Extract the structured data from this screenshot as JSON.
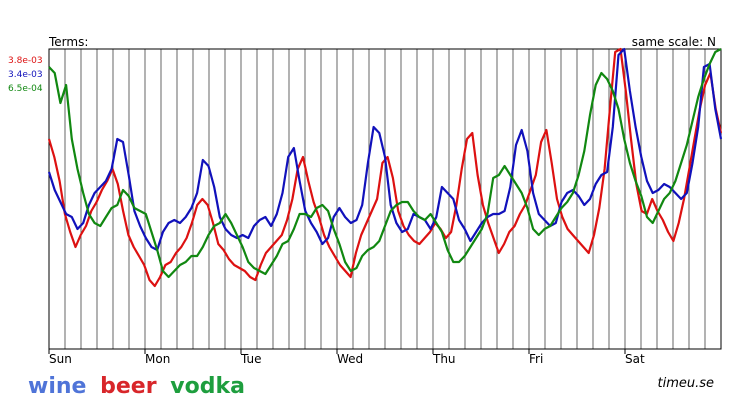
{
  "header": {
    "terms_label": "Terms:",
    "scale_label": "same scale: N"
  },
  "scale_labels": [
    {
      "text": "3.8e-03",
      "color": "#dd1111"
    },
    {
      "text": "3.4e-03",
      "color": "#1111bb"
    },
    {
      "text": "6.5e-04",
      "color": "#118811"
    }
  ],
  "legend": [
    {
      "text": "wine",
      "color": "#4f74d8"
    },
    {
      "text": "beer",
      "color": "#d8262a"
    },
    {
      "text": "vodka",
      "color": "#1e9e3e"
    }
  ],
  "brand": "timeu.se",
  "chart_data": {
    "type": "line",
    "x_labels": [
      "Sun",
      "Mon",
      "Tue",
      "Wed",
      "Thu",
      "Fri",
      "Sat"
    ],
    "ylim": [
      0,
      100
    ],
    "grid": "vertical lines every 4 hours, no horizontal grid",
    "series": [
      {
        "name": "beer",
        "color": "#dd1111",
        "values": [
          70,
          64,
          56,
          45,
          39,
          34,
          38,
          41,
          46,
          49,
          53,
          56,
          60,
          55,
          46,
          38,
          34,
          31,
          28,
          23,
          21,
          24,
          28,
          29,
          32,
          34,
          37,
          42,
          48,
          50,
          48,
          42,
          35,
          33,
          30,
          28,
          27,
          26,
          24,
          23,
          28,
          32,
          34,
          36,
          38,
          43,
          50,
          60,
          64,
          56,
          49,
          44,
          38,
          34,
          31,
          28,
          26,
          24,
          32,
          38,
          42,
          46,
          50,
          62,
          64,
          57,
          46,
          41,
          38,
          36,
          35,
          37,
          39,
          42,
          40,
          37,
          39,
          48,
          60,
          70,
          72,
          58,
          48,
          42,
          37,
          32,
          35,
          39,
          41,
          45,
          48,
          53,
          58,
          69,
          73,
          62,
          50,
          44,
          40,
          38,
          36,
          34,
          32,
          38,
          47,
          60,
          80,
          99,
          100,
          86,
          70,
          55,
          46,
          45,
          50,
          46,
          43,
          39,
          36,
          42,
          50,
          60,
          70,
          80,
          88,
          92,
          80,
          72
        ]
      },
      {
        "name": "wine",
        "color": "#1111bb",
        "values": [
          59,
          53,
          49,
          45,
          44,
          40,
          42,
          48,
          52,
          54,
          56,
          60,
          70,
          69,
          58,
          46,
          41,
          37,
          34,
          33,
          39,
          42,
          43,
          42,
          44,
          47,
          52,
          63,
          61,
          54,
          44,
          40,
          38,
          37,
          38,
          37,
          41,
          43,
          44,
          41,
          45,
          52,
          64,
          67,
          56,
          46,
          42,
          39,
          35,
          37,
          44,
          47,
          44,
          42,
          43,
          48,
          62,
          74,
          72,
          64,
          48,
          42,
          39,
          40,
          45,
          44,
          43,
          40,
          44,
          54,
          52,
          50,
          43,
          40,
          36,
          39,
          42,
          44,
          45,
          45,
          46,
          54,
          68,
          73,
          66,
          52,
          45,
          43,
          41,
          42,
          49,
          52,
          53,
          51,
          48,
          50,
          55,
          58,
          59,
          74,
          98,
          100,
          86,
          74,
          64,
          56,
          52,
          53,
          55,
          54,
          52,
          50,
          52,
          62,
          74,
          94,
          95,
          80,
          70
        ]
      },
      {
        "name": "vodka",
        "color": "#118811",
        "values": [
          94,
          92,
          82,
          88,
          70,
          60,
          52,
          45,
          42,
          41,
          44,
          47,
          48,
          53,
          51,
          47,
          46,
          45,
          39,
          33,
          26,
          24,
          26,
          28,
          29,
          31,
          31,
          34,
          38,
          41,
          42,
          45,
          42,
          38,
          34,
          29,
          27,
          26,
          25,
          28,
          31,
          35,
          36,
          40,
          45,
          45,
          44,
          47,
          48,
          46,
          40,
          35,
          29,
          26,
          27,
          31,
          33,
          34,
          36,
          41,
          46,
          48,
          49,
          49,
          46,
          44,
          43,
          45,
          42,
          39,
          33,
          29,
          29,
          31,
          34,
          37,
          40,
          45,
          57,
          58,
          61,
          58,
          55,
          52,
          47,
          40,
          38,
          40,
          41,
          44,
          47,
          49,
          52,
          58,
          66,
          78,
          88,
          92,
          90,
          86,
          80,
          70,
          62,
          56,
          51,
          44,
          42,
          46,
          50,
          52,
          56,
          62,
          68,
          76,
          84,
          90,
          95,
          99,
          100
        ]
      }
    ]
  }
}
